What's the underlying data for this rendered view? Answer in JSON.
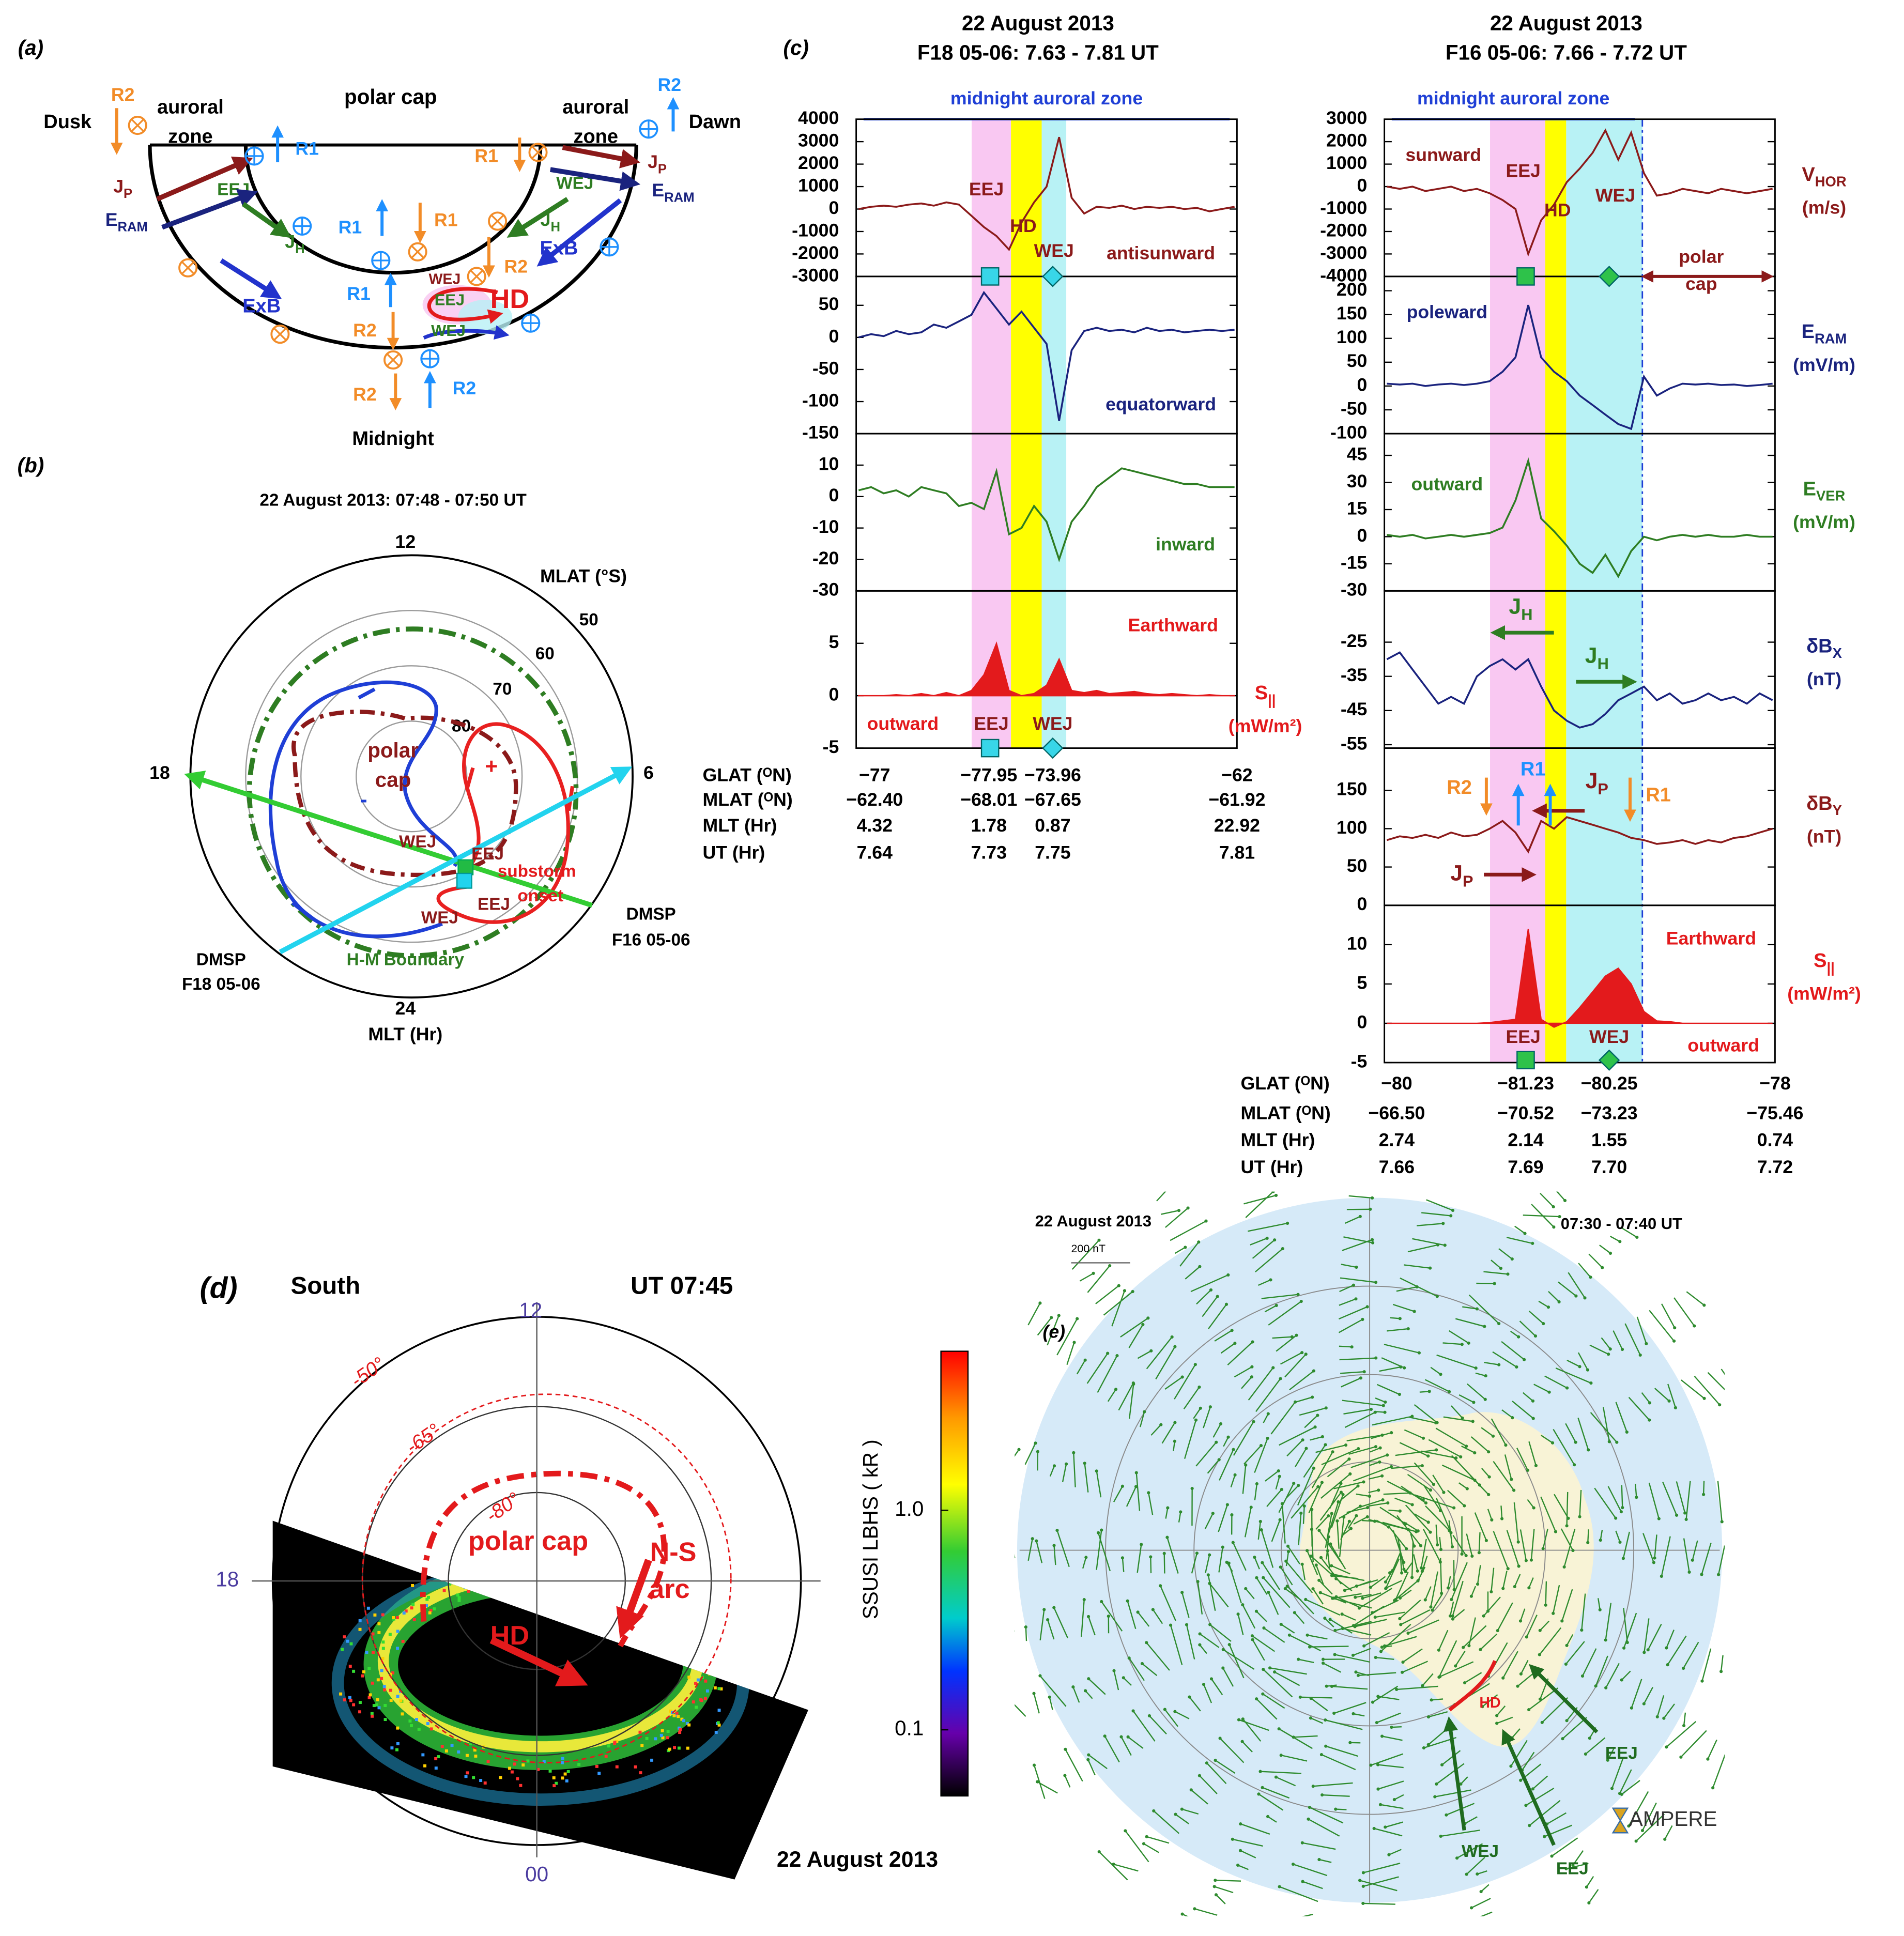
{
  "panel_a": {
    "label": "(a)",
    "labels": [
      "polar cap",
      "auroral",
      "zone",
      "auroral",
      "zone",
      "Dusk",
      "Dawn",
      "Midnight",
      "R2",
      "R2",
      "R1",
      "R1",
      {
        "text": "J",
        "sub": "P"
      },
      {
        "text": "J",
        "sub": "P"
      },
      {
        "text": "E",
        "sub": "RAM"
      },
      {
        "text": "E",
        "sub": "RAM"
      },
      "EEJ",
      {
        "text": "J",
        "sub": "H"
      },
      "WEJ",
      {
        "text": "J",
        "sub": "H"
      },
      "ExB",
      "ExB",
      "R1",
      "R1",
      "R1",
      "R2",
      "WEJ",
      "EEJ",
      "HD",
      "WEJ",
      "R2",
      "R2",
      "R2"
    ]
  },
  "panel_b": {
    "label": "(b)",
    "title": "22 August 2013: 07:48 - 07:50 UT",
    "mlt_labels": [
      "12",
      "18",
      "6",
      "24"
    ],
    "mlt_title": "MLT (Hr)",
    "mlat_title": "MLAT (°S)",
    "mlat_rings": [
      50,
      60,
      70,
      80
    ],
    "labels": [
      "polar",
      "cap",
      "+",
      "-",
      "WEJ",
      "EEJ",
      "EEJ",
      "WEJ",
      "substorm",
      "onset",
      "DMSP",
      "F16 05-06",
      "DMSP",
      "F18 05-06",
      "H-M Boundary"
    ]
  },
  "panel_c": {
    "label": "(c)",
    "left": {
      "title": [
        "22 August 2013",
        "F18 05-06: 7.63 - 7.81 UT"
      ],
      "zone": "midnight auroral zone",
      "annotations": [
        "EEJ",
        "HD",
        "WEJ",
        "antisunward",
        "equatorward",
        "inward",
        "Earthward",
        "outward",
        "EEJ",
        "WEJ"
      ],
      "table": [
        [
          "GLAT (ᴼN)",
          "−77",
          "−77.95",
          "−73.96",
          "−62"
        ],
        [
          "MLAT (ᴼN)",
          "−62.40",
          "−68.01",
          "−67.65",
          "−61.92"
        ],
        [
          "MLT (Hr)",
          "4.32",
          "1.78",
          "0.87",
          "22.92"
        ],
        [
          "UT (Hr)",
          "7.64",
          "7.73",
          "7.75",
          "7.81"
        ]
      ]
    },
    "right": {
      "title": [
        "22 August 2013",
        "F16 05-06: 7.66 - 7.72 UT"
      ],
      "zone": "midnight auroral zone",
      "annotations": [
        "sunward",
        "EEJ",
        "WEJ",
        "HD",
        "polar",
        "cap",
        "poleward",
        "outward",
        {
          "text": "J",
          "sub": "H"
        },
        {
          "text": "J",
          "sub": "H"
        },
        "R2",
        "R1",
        "R1",
        {
          "text": "J",
          "sub": "P"
        },
        {
          "text": "J",
          "sub": "P"
        },
        "Earthward",
        "EEJ",
        "WEJ",
        "outward"
      ],
      "table": [
        [
          "GLAT (ᴼN)",
          "−80",
          "−81.23",
          "−80.25",
          "−78"
        ],
        [
          "MLAT (ᴼN)",
          "−66.50",
          "−70.52",
          "−73.23",
          "−75.46"
        ],
        [
          "MLT (Hr)",
          "2.74",
          "2.14",
          "1.55",
          "0.74"
        ],
        [
          "UT (Hr)",
          "7.66",
          "7.69",
          "7.70",
          "7.72"
        ]
      ]
    }
  },
  "chart_data": [
    {
      "type": "line",
      "color": "#8b1a1a",
      "ylim": [
        -3000,
        4000
      ],
      "yticks": [
        4000,
        3000,
        2000,
        1000,
        0,
        -1000,
        -2000,
        -3000
      ],
      "values": [
        0,
        100,
        150,
        100,
        200,
        250,
        150,
        300,
        200,
        -300,
        -800,
        -1200,
        -1800,
        -600,
        300,
        1000,
        3200,
        500,
        -200,
        100,
        50,
        150,
        0,
        100,
        50,
        100,
        0,
        50,
        -100,
        0,
        100
      ]
    },
    {
      "type": "line",
      "color": "#1a237e",
      "ylim": [
        -150,
        95
      ],
      "yticks": [
        50,
        0,
        -50,
        -100,
        -150
      ],
      "values": [
        0,
        5,
        2,
        10,
        5,
        8,
        20,
        15,
        25,
        35,
        70,
        45,
        20,
        40,
        15,
        -10,
        -130,
        -20,
        10,
        15,
        10,
        12,
        8,
        15,
        10,
        12,
        8,
        10,
        12,
        10,
        12
      ]
    },
    {
      "type": "line",
      "color": "#2e7d22",
      "ylim": [
        -30,
        20
      ],
      "yticks": [
        10,
        0,
        -10,
        -20,
        -30
      ],
      "values": [
        2,
        3,
        1,
        2,
        0,
        3,
        2,
        1,
        -3,
        -2,
        -4,
        8,
        -12,
        -10,
        -3,
        -8,
        -20,
        -8,
        -3,
        3,
        6,
        9,
        8,
        7,
        6,
        5,
        4,
        4,
        3,
        3,
        3
      ]
    },
    {
      "type": "area",
      "color": "#e31a1c",
      "ylim": [
        -5,
        10
      ],
      "yticks": [
        5,
        0,
        -5
      ],
      "ylabel": {
        "text": "S",
        "sub": "||"
      },
      "yunit": "(mW/m²)",
      "values": [
        0,
        0,
        0,
        0.1,
        0,
        0.2,
        0,
        0.3,
        0,
        0.5,
        2,
        5,
        0.5,
        0,
        0.2,
        1,
        3.5,
        0.5,
        0.3,
        0.5,
        0.2,
        0.3,
        0.4,
        0.2,
        0.1,
        0.2,
        0.1,
        0,
        0.1,
        0,
        0
      ]
    },
    {
      "type": "line",
      "color": "#8b1a1a",
      "ylim": [
        -4000,
        3000
      ],
      "yticks": [
        3000,
        2000,
        1000,
        0,
        -1000,
        -2000,
        -3000,
        -4000
      ],
      "ylabel": {
        "text": "V",
        "sub": "HOR"
      },
      "yunit": "(m/s)",
      "values": [
        0,
        -100,
        0,
        -200,
        -100,
        0,
        -200,
        -100,
        -300,
        -600,
        -1000,
        -3000,
        -1500,
        -800,
        200,
        800,
        1500,
        2500,
        1200,
        2400,
        600,
        -400,
        -300,
        -100,
        -200,
        -300,
        -100,
        -200,
        -300,
        -200,
        -100
      ]
    },
    {
      "type": "line",
      "color": "#1a237e",
      "ylim": [
        -100,
        230
      ],
      "yticks": [
        200,
        150,
        100,
        50,
        0,
        -50,
        -100
      ],
      "ylabel": {
        "text": "E",
        "sub": "RAM"
      },
      "yunit": "(mV/m)",
      "values": [
        5,
        3,
        5,
        0,
        3,
        5,
        2,
        5,
        10,
        30,
        60,
        170,
        60,
        30,
        10,
        -20,
        -40,
        -60,
        -80,
        -90,
        20,
        -20,
        -5,
        5,
        3,
        5,
        2,
        3,
        0,
        2,
        5
      ]
    },
    {
      "type": "line",
      "color": "#2e7d22",
      "ylim": [
        -30,
        57
      ],
      "yticks": [
        45,
        30,
        15,
        0,
        -15,
        -30
      ],
      "ylabel": {
        "text": "E",
        "sub": "VER"
      },
      "yunit": "(mV/m)",
      "values": [
        1,
        0,
        1,
        -1,
        0,
        1,
        0,
        1,
        2,
        5,
        20,
        42,
        10,
        3,
        -5,
        -15,
        -20,
        -10,
        -22,
        -8,
        0,
        -2,
        0,
        1,
        0,
        1,
        0,
        0,
        1,
        0,
        0
      ]
    },
    {
      "type": "line",
      "color": "#1a237e",
      "ylim": [
        -56,
        -10
      ],
      "yticks": [
        -25,
        -35,
        -45,
        -55
      ],
      "ylabel": {
        "text": "δB",
        "sub": "X"
      },
      "yunit": "(nT)",
      "values": [
        -30,
        -28,
        -33,
        -38,
        -43,
        -41,
        -43,
        -35,
        -32,
        -30,
        -33,
        -30,
        -38,
        -45,
        -48,
        -50,
        -49,
        -46,
        -42,
        -40,
        -38,
        -42,
        -40,
        -43,
        -42,
        -40,
        -42,
        -41,
        -43,
        -40,
        -42
      ]
    },
    {
      "type": "line",
      "color": "#8b1a1a",
      "ylim": [
        0,
        205
      ],
      "yticks": [
        150,
        100,
        50,
        0
      ],
      "ylabel": {
        "text": "δB",
        "sub": "Y"
      },
      "yunit": "(nT)",
      "values": [
        85,
        90,
        88,
        92,
        88,
        95,
        90,
        92,
        100,
        110,
        95,
        70,
        110,
        100,
        115,
        110,
        105,
        100,
        95,
        88,
        85,
        80,
        82,
        85,
        80,
        85,
        82,
        88,
        90,
        95,
        100
      ]
    },
    {
      "type": "area",
      "color": "#e31a1c",
      "ylim": [
        -5,
        15
      ],
      "yticks": [
        10,
        5,
        0,
        -5
      ],
      "ylabel": {
        "text": "S",
        "sub": "||"
      },
      "yunit": "(mW/m²)",
      "values": [
        0,
        0,
        0,
        0,
        0,
        0,
        0,
        0,
        0.1,
        0.3,
        0.5,
        12,
        0.5,
        -0.5,
        0.2,
        2,
        4,
        6,
        7,
        5,
        1.5,
        0.3,
        0.2,
        0,
        0,
        0,
        0,
        0,
        0,
        0,
        0
      ]
    }
  ],
  "panel_d": {
    "label": "(d)",
    "hemisphere": "South",
    "time": "UT 07:45",
    "mlt_labels": [
      "12",
      "18",
      "00"
    ],
    "ring_labels": [
      "-50°",
      "-65°",
      "-80°"
    ],
    "labels": [
      "polar cap",
      "N-S",
      "arc",
      "HD"
    ],
    "date": "22 August 2013",
    "colorbar": {
      "title": "SSUSI LBHS ( kR )",
      "log": true,
      "lim": [
        0.05,
        5.3
      ],
      "ticks": [
        {
          "value": 1.0,
          "label": "1.0"
        },
        0.1
      ]
    }
  },
  "panel_e": {
    "label": "(e)",
    "date": "22 August 2013",
    "time": "07:30 - 07:40 UT",
    "scale": "200 nT",
    "labels": [
      "HD",
      "EEJ",
      "WEJ",
      "EEJ"
    ],
    "logo": "AMPERE"
  }
}
